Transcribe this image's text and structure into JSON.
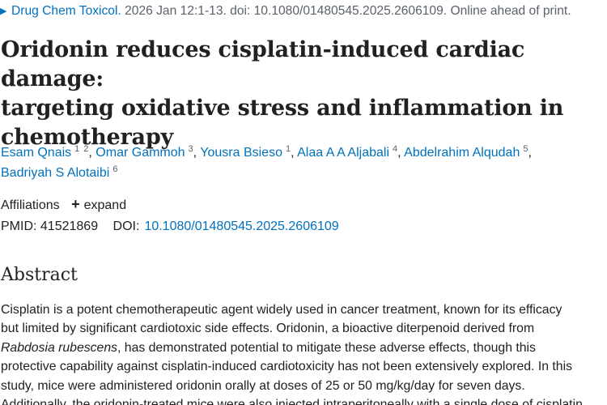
{
  "citation": {
    "journal": "Drug Chem Toxicol.",
    "details": " 2026 Jan 12:1-13. doi: 10.1080/01480545.2025.2606109. Online ahead of print."
  },
  "title": {
    "line1": "Oridonin reduces cisplatin-induced cardiac damage:",
    "line2": "targeting oxidative stress and inflammation in",
    "line3": "chemotherapy"
  },
  "authors": [
    {
      "name": "Esam Qnais",
      "affils": [
        "1",
        "2"
      ],
      "sep": ","
    },
    {
      "name": "Omar Gammoh",
      "affils": [
        "3"
      ],
      "sep": ","
    },
    {
      "name": "Yousra Bsieso",
      "affils": [
        "1"
      ],
      "sep": ","
    },
    {
      "name": "Alaa A A Aljabali",
      "affils": [
        "4"
      ],
      "sep": ","
    },
    {
      "name": "Abdelrahim Alqudah",
      "affils": [
        "5"
      ],
      "sep": ","
    },
    {
      "name": "Badriyah S Alotaibi",
      "affils": [
        "6"
      ],
      "sep": ""
    }
  ],
  "affiliations": {
    "label": "Affiliations",
    "expand_label": "expand"
  },
  "ids": {
    "pmid_label": "PMID:",
    "pmid": "41521869",
    "doi_label": "DOI:",
    "doi": "10.1080/01480545.2025.2606109"
  },
  "abstract": {
    "heading": "Abstract",
    "line1": "Cisplatin is a potent chemotherapeutic agent widely used in cancer treatment, known for its efficacy",
    "line2": "but limited by significant cardiotoxic side effects. Oridonin, a bioactive diterpenoid derived from",
    "line3_italic": "Rabdosia rubescens",
    "line3_rest": ", has demonstrated potential to mitigate these adverse effects, though this",
    "line4": "protective capability against cisplatin-induced cardiotoxicity has not been extensively explored. In this",
    "line5": "study, mice were administered oridonin orally at doses of 25 or 50 mg/kg/day for seven days.",
    "line6": "Additionally, the oridonin-treated mice were also injected intraperitoneally with a single dose of cisplatin"
  }
}
